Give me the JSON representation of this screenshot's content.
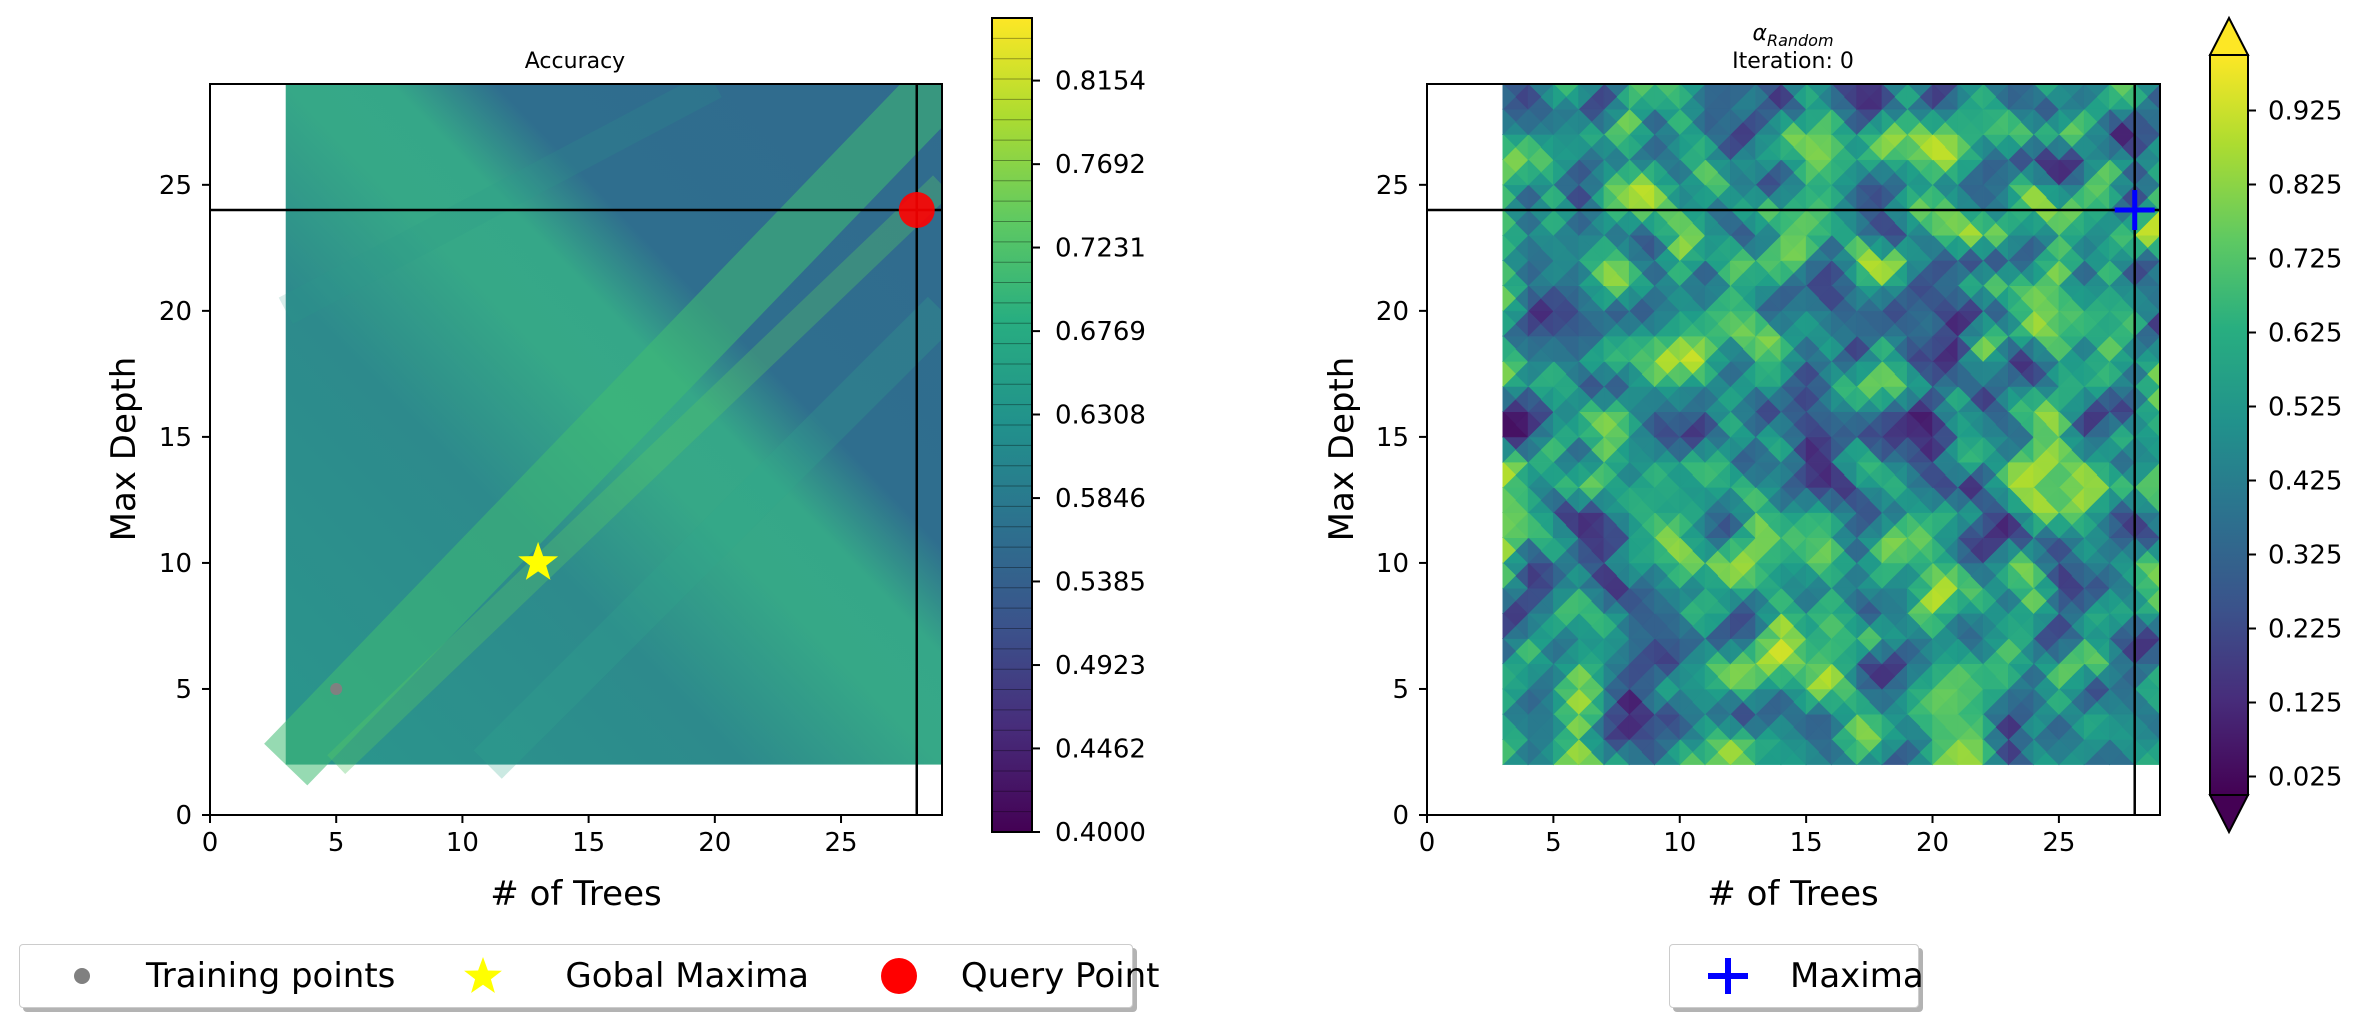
{
  "chart_data": [
    {
      "type": "heatmap",
      "title": "Accuracy",
      "xlabel": "# of Trees",
      "ylabel": "Max Depth",
      "xlim": [
        0,
        29
      ],
      "ylim": [
        0,
        29
      ],
      "xticks": [
        0,
        5,
        10,
        15,
        20,
        25
      ],
      "yticks": [
        0,
        5,
        10,
        15,
        20,
        25
      ],
      "data_extent": {
        "x": [
          3,
          29
        ],
        "y": [
          2,
          29
        ]
      },
      "colorbar": {
        "ticks": [
          "0.4000",
          "0.4462",
          "0.4923",
          "0.5385",
          "0.5846",
          "0.6308",
          "0.6769",
          "0.7231",
          "0.7692",
          "0.8154"
        ],
        "range": [
          0.4,
          0.85
        ],
        "levels": 40
      },
      "crosshair": {
        "x": 28,
        "y": 24
      },
      "markers": {
        "training_points": [
          {
            "x": 5,
            "y": 5
          }
        ],
        "global_maxima": {
          "x": 13,
          "y": 10
        },
        "query_point": {
          "x": 28,
          "y": 24
        }
      },
      "colors": {
        "training": "#808080",
        "maxima": "#ffff00",
        "query": "#ff0000"
      }
    },
    {
      "type": "heatmap",
      "title_symbol": "α",
      "title_subscript": "Random",
      "subtitle": "Iteration: 0",
      "xlabel": "# of Trees",
      "ylabel": "Max Depth",
      "xlim": [
        0,
        29
      ],
      "ylim": [
        0,
        29
      ],
      "xticks": [
        0,
        5,
        10,
        15,
        20,
        25
      ],
      "yticks": [
        0,
        5,
        10,
        15,
        20,
        25
      ],
      "data_extent": {
        "x": [
          3,
          29
        ],
        "y": [
          2,
          29
        ]
      },
      "colorbar": {
        "ticks": [
          "0.025",
          "0.125",
          "0.225",
          "0.325",
          "0.425",
          "0.525",
          "0.625",
          "0.725",
          "0.825",
          "0.925"
        ],
        "range": [
          0.0,
          1.0
        ],
        "extend": "both"
      },
      "crosshair": {
        "x": 28,
        "y": 24
      },
      "markers": {
        "maxima": {
          "x": 28,
          "y": 24
        }
      },
      "colors": {
        "maxima": "#0000ff"
      }
    }
  ],
  "legend_left": [
    {
      "label": "Training points",
      "symbol": "dot",
      "color": "#808080"
    },
    {
      "label": "Gobal Maxima",
      "symbol": "star",
      "color": "#ffff00"
    },
    {
      "label": "Query Point",
      "symbol": "circle",
      "color": "#ff0000"
    }
  ],
  "legend_right": [
    {
      "label": "Maxima",
      "symbol": "plus",
      "color": "#0000ff"
    }
  ]
}
